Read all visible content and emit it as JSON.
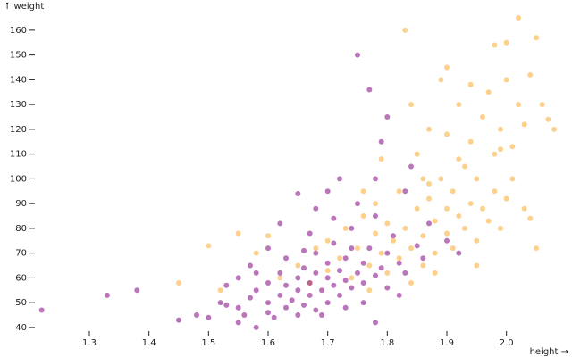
{
  "chart_data": {
    "type": "scatter",
    "x_label": "height →",
    "y_label": "↑ weight",
    "xlim": [
      1.21,
      2.08
    ],
    "ylim": [
      36,
      165
    ],
    "xticks": [
      1.3,
      1.4,
      1.5,
      1.6,
      1.7,
      1.8,
      1.9,
      {
        "value": 2,
        "label": "2.0"
      }
    ],
    "yticks": [
      40,
      50,
      60,
      70,
      80,
      90,
      100,
      110,
      120,
      130,
      140,
      150,
      160
    ],
    "grid": false,
    "series": [
      {
        "color": "#fbb33e",
        "x": [
          1.45,
          1.5,
          1.52,
          1.55,
          1.58,
          1.6,
          1.62,
          1.65,
          1.67,
          1.68,
          1.7,
          1.7,
          1.72,
          1.73,
          1.74,
          1.75,
          1.76,
          1.77,
          1.78,
          1.78,
          1.79,
          1.8,
          1.8,
          1.81,
          1.82,
          1.82,
          1.83,
          1.83,
          1.84,
          1.85,
          1.85,
          1.86,
          1.86,
          1.87,
          1.87,
          1.88,
          1.88,
          1.89,
          1.89,
          1.9,
          1.9,
          1.9,
          1.91,
          1.91,
          1.92,
          1.92,
          1.93,
          1.93,
          1.94,
          1.94,
          1.95,
          1.95,
          1.96,
          1.96,
          1.97,
          1.97,
          1.98,
          1.98,
          1.99,
          1.99,
          2.0,
          2.0,
          2.01,
          2.01,
          2.02,
          2.02,
          2.03,
          2.03,
          2.04,
          2.05,
          2.05,
          2.06,
          2.07,
          2.08,
          1.98,
          2.0,
          1.84,
          1.86,
          1.79,
          1.76,
          1.88,
          1.95,
          1.92,
          1.84,
          1.77,
          1.94,
          1.99,
          2.04,
          1.9,
          1.87
        ],
        "values": [
          58,
          73,
          55,
          78,
          70,
          77,
          60,
          65,
          58,
          72,
          63,
          75,
          68,
          80,
          60,
          72,
          85,
          65,
          78,
          90,
          70,
          82,
          62,
          75,
          95,
          68,
          80,
          160,
          72,
          88,
          110,
          77,
          65,
          92,
          120,
          83,
          70,
          100,
          140,
          78,
          88,
          145,
          95,
          72,
          85,
          130,
          105,
          80,
          90,
          115,
          75,
          100,
          125,
          88,
          83,
          135,
          95,
          110,
          120,
          80,
          140,
          92,
          100,
          113,
          165,
          130,
          88,
          122,
          142,
          157,
          72,
          130,
          124,
          120,
          154,
          155,
          130,
          100,
          108,
          95,
          62,
          65,
          108,
          58,
          55,
          138,
          112,
          84,
          118,
          98
        ]
      },
      {
        "color": "#8e1a8e",
        "x": [
          1.22,
          1.33,
          1.38,
          1.45,
          1.48,
          1.5,
          1.52,
          1.53,
          1.55,
          1.55,
          1.56,
          1.57,
          1.58,
          1.58,
          1.6,
          1.6,
          1.6,
          1.61,
          1.62,
          1.62,
          1.63,
          1.63,
          1.64,
          1.65,
          1.65,
          1.65,
          1.66,
          1.66,
          1.67,
          1.67,
          1.68,
          1.68,
          1.68,
          1.69,
          1.7,
          1.7,
          1.7,
          1.71,
          1.71,
          1.72,
          1.72,
          1.73,
          1.73,
          1.74,
          1.74,
          1.75,
          1.75,
          1.75,
          1.76,
          1.76,
          1.77,
          1.77,
          1.78,
          1.78,
          1.79,
          1.8,
          1.8,
          1.8,
          1.81,
          1.82,
          1.83,
          1.83,
          1.85,
          1.86,
          1.87,
          1.9,
          1.92,
          1.7,
          1.65,
          1.68,
          1.62,
          1.72,
          1.78,
          1.78,
          1.6,
          1.57,
          1.53,
          1.63,
          1.67,
          1.73,
          1.76,
          1.82,
          1.69,
          1.71,
          1.66,
          1.74,
          1.79,
          1.84,
          1.55,
          1.58
        ],
        "values": [
          47,
          53,
          55,
          43,
          45,
          44,
          50,
          57,
          42,
          48,
          45,
          52,
          40,
          55,
          46,
          50,
          58,
          44,
          53,
          62,
          48,
          57,
          51,
          45,
          55,
          60,
          49,
          64,
          53,
          58,
          47,
          62,
          70,
          55,
          50,
          60,
          66,
          57,
          74,
          53,
          63,
          59,
          68,
          56,
          80,
          62,
          150,
          90,
          58,
          66,
          136,
          72,
          61,
          85,
          64,
          70,
          125,
          56,
          77,
          66,
          95,
          62,
          73,
          68,
          82,
          75,
          70,
          95,
          94,
          88,
          82,
          100,
          100,
          42,
          72,
          65,
          49,
          68,
          78,
          48,
          50,
          53,
          45,
          84,
          71,
          72,
          115,
          105,
          60,
          62
        ]
      }
    ]
  }
}
